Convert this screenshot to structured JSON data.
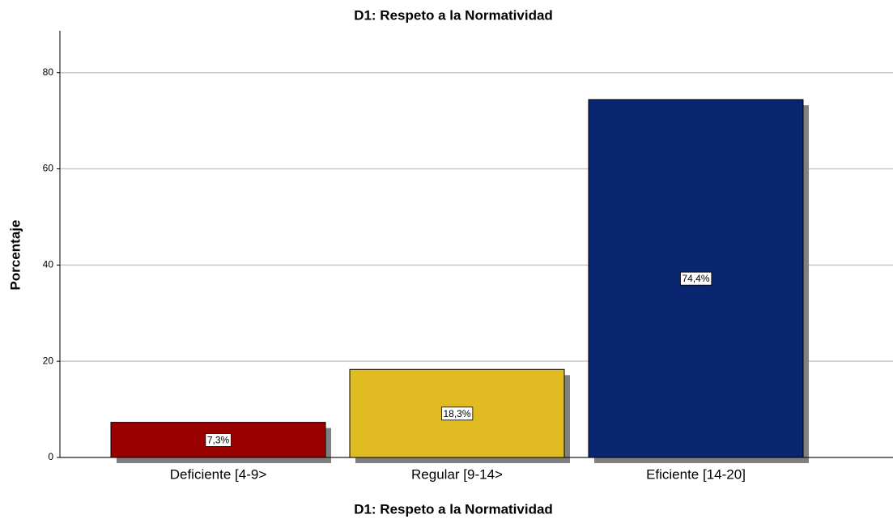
{
  "chart_data": {
    "type": "bar",
    "title": "D1: Respeto a la Normatividad",
    "x_label": "D1: Respeto a la Normatividad",
    "y_label": "Porcentaje",
    "categories": [
      "Deficiente [4-9>",
      "Regular [9-14>",
      "Eficiente [14-20]"
    ],
    "values": [
      7.3,
      18.3,
      74.4
    ],
    "value_labels": [
      "7,3%",
      "18,3%",
      "74,4%"
    ],
    "colors": [
      "#990000",
      "#e0bb22",
      "#0b2670"
    ],
    "ylim": [
      0,
      88.7
    ],
    "yticks": [
      0,
      20,
      40,
      60,
      80
    ],
    "grid": true
  }
}
